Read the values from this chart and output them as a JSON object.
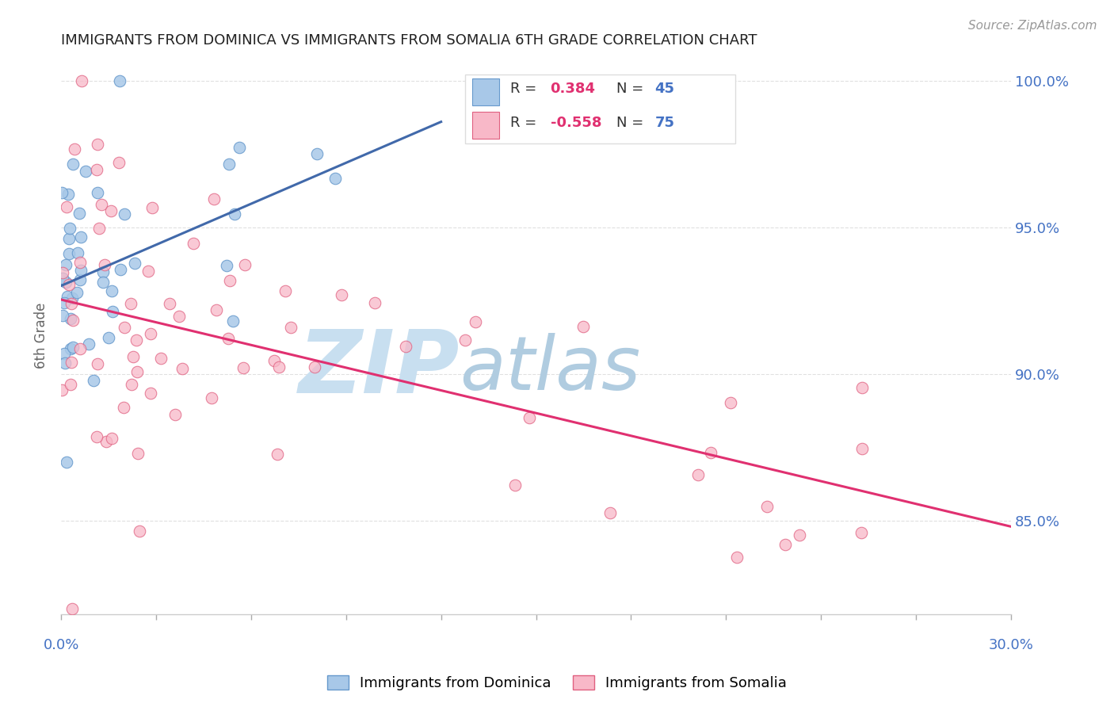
{
  "title": "IMMIGRANTS FROM DOMINICA VS IMMIGRANTS FROM SOMALIA 6TH GRADE CORRELATION CHART",
  "source": "Source: ZipAtlas.com",
  "ylabel": "6th Grade",
  "xmin": 0.0,
  "xmax": 0.3,
  "ymin": 0.818,
  "ymax": 1.008,
  "dominica_R": 0.384,
  "dominica_N": 45,
  "somalia_R": -0.558,
  "somalia_N": 75,
  "dominica_color": "#a8c8e8",
  "dominica_edge_color": "#6699cc",
  "dominica_line_color": "#4169aa",
  "somalia_color": "#f8b8c8",
  "somalia_edge_color": "#e06080",
  "somalia_line_color": "#e03070",
  "legend_R_color": "#e03070",
  "legend_N_color": "#4472c4",
  "watermark_zip": "ZIP",
  "watermark_atlas": "atlas",
  "watermark_color_zip": "#c8dff0",
  "watermark_color_atlas": "#b0cce0",
  "background_color": "#ffffff",
  "grid_color": "#e0e0e0",
  "title_color": "#222222",
  "axis_label_color": "#4472c4",
  "ytick_vals": [
    0.85,
    0.9,
    0.95,
    1.0
  ],
  "ytick_labels": [
    "85.0%",
    "90.0%",
    "95.0%",
    "100.0%"
  ]
}
